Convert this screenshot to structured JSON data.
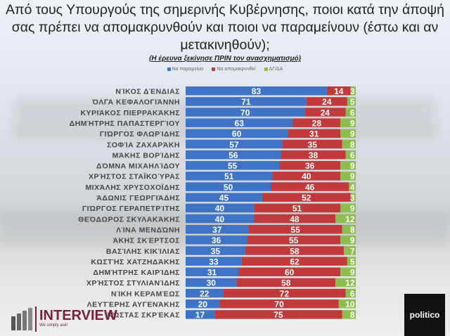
{
  "colors": {
    "blue": "#3f73c6",
    "red": "#c0393b",
    "green": "#8dbd4c"
  },
  "chart_data": {
    "type": "bar",
    "orientation": "horizontal",
    "stacked": true,
    "title": "Από τους Υπουργούς της σημερινής Κυβέρνησης, ποιοι κατά την άποψή σας πρέπει να απομακρυνθούν και ποιοι να παραμείνουν (έστω και αν μετακινηθούν);",
    "subtitle": "(Η έρευνα ξεκίνησε ΠΡΙΝ τον ανασχηματισμό)",
    "legend_position": "top",
    "xlim": [
      0,
      100
    ],
    "categories": [
      "ΝΊΚΟΣ ΔΈΝΔΙΑΣ",
      "ΌΛΓΑ ΚΕΦΑΛΟΓΙΆΝΝΗ",
      "ΚΥΡΙΆΚΟΣ ΠΙΕΡΡΑΚΆΚΗΣ",
      "ΔΗΜΉΤΡΗΣ ΠΑΠΑΣΤΕΡΓΊΟΥ",
      "ΓΙΏΡΓΟΣ ΦΛΩΡΊΔΗΣ",
      "ΣΟΦΊΑ ΖΑΧΑΡΆΚΗ",
      "ΜΆΚΗΣ ΒΟΡΊΔΗΣ",
      "ΔΌΜΝΑ ΜΙΧΑΗΛΊΔΟΥ",
      "ΧΡΉΣΤΟΣ ΣΤΑΪΚΟΎΡΑΣ",
      "ΜΙΧΆΛΗΣ ΧΡΥΣΟΧΟΪΔΗΣ",
      "ΆΔΩΝΙΣ ΓΕΩΡΓΙΆΔΗΣ",
      "ΓΙΏΡΓΟΣ ΓΕΡΑΠΕΤΡΊΤΗΣ",
      "ΘΕΌΔΩΡΟΣ ΣΚΥΛΑΚΆΚΗΣ",
      "ΛΊΝΑ ΜΕΝΔΏΝΗ",
      "ΆΚΗΣ ΣΚΈΡΤΣΟΣ",
      "ΒΑΣΊΛΗΣ ΚΙΚΊΛΙΑΣ",
      "ΚΩΣΤΉΣ ΧΑΤΖΗΔΆΚΗΣ",
      "ΔΗΜΉΤΡΗΣ ΚΑΙΡΊΔΗΣ",
      "ΧΡΉΣΤΟΣ ΣΤΥΛΙΑΝΊΔΗΣ",
      "ΝΊΚΗ ΚΕΡΑΜΈΩΣ",
      "ΛΕΥΤΈΡΗΣ ΑΥΓΕΝΆΚΗΣ",
      "ΚΏΣΤΑΣ ΣΚΡΈΚΑΣ"
    ],
    "series": [
      {
        "name": "Να παραμείνει",
        "color": "#3f73c6",
        "values": [
          83,
          71,
          70,
          63,
          60,
          57,
          56,
          55,
          51,
          50,
          45,
          40,
          40,
          37,
          36,
          35,
          33,
          31,
          30,
          22,
          20,
          17
        ]
      },
      {
        "name": "Να απομακρυνθεί",
        "color": "#c0393b",
        "values": [
          14,
          24,
          24,
          28,
          31,
          35,
          38,
          36,
          40,
          46,
          52,
          51,
          48,
          55,
          55,
          58,
          62,
          60,
          58,
          72,
          70,
          75
        ]
      },
      {
        "name": "ΔΓ/ΔΑ",
        "color": "#8dbd4c",
        "values": [
          3,
          5,
          6,
          9,
          9,
          8,
          6,
          9,
          9,
          4,
          3,
          9,
          12,
          8,
          9,
          7,
          5,
          9,
          12,
          6,
          10,
          8
        ]
      }
    ]
  },
  "logos": {
    "interview": "INTERVIEW",
    "interview_tagline": "We simply ask!",
    "politico": "politico"
  }
}
